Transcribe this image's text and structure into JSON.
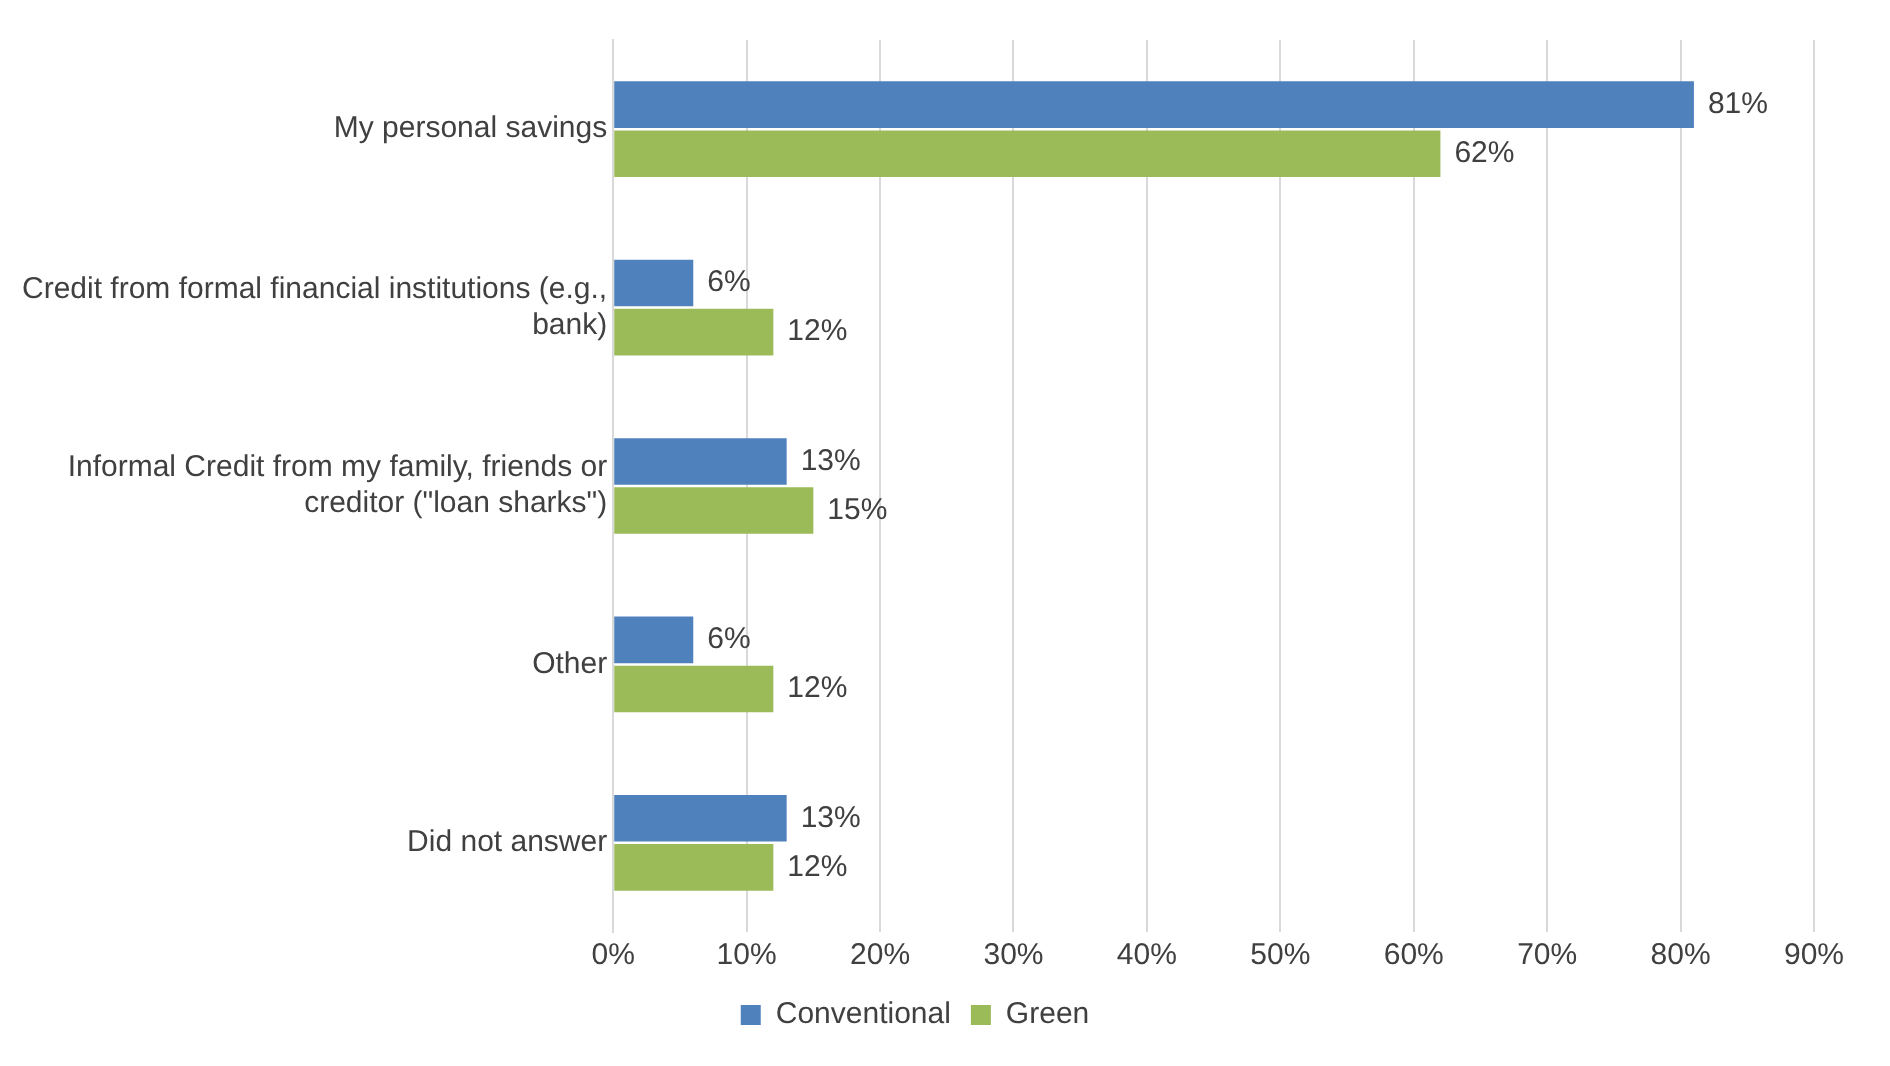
{
  "chart_data": {
    "type": "bar",
    "orientation": "horizontal",
    "categories": [
      "My personal savings",
      "Credit from formal financial institutions (e.g., bank)",
      "Informal Credit from my family, friends or creditor (\"loan sharks\")",
      "Other",
      "Did not answer"
    ],
    "series": [
      {
        "name": "Conventional",
        "color": "#4f81bd",
        "values": [
          81,
          6,
          13,
          6,
          13
        ],
        "value_labels": [
          "81%",
          "6%",
          "13%",
          "6%",
          "13%"
        ]
      },
      {
        "name": "Green",
        "color": "#9bbb59",
        "values": [
          62,
          12,
          15,
          12,
          12
        ],
        "value_labels": [
          "62%",
          "12%",
          "15%",
          "12%",
          "12%"
        ]
      }
    ],
    "xlim": [
      0,
      90
    ],
    "xticks": [
      {
        "value": 0,
        "label": "0%"
      },
      {
        "value": 10,
        "label": "10%"
      },
      {
        "value": 20,
        "label": "20%"
      },
      {
        "value": 30,
        "label": "30%"
      },
      {
        "value": 40,
        "label": "40%"
      },
      {
        "value": 50,
        "label": "50%"
      },
      {
        "value": 60,
        "label": "60%"
      },
      {
        "value": 70,
        "label": "70%"
      },
      {
        "value": 80,
        "label": "80%"
      },
      {
        "value": 90,
        "label": "90%"
      }
    ],
    "grid": "x",
    "legend": "bottom"
  }
}
